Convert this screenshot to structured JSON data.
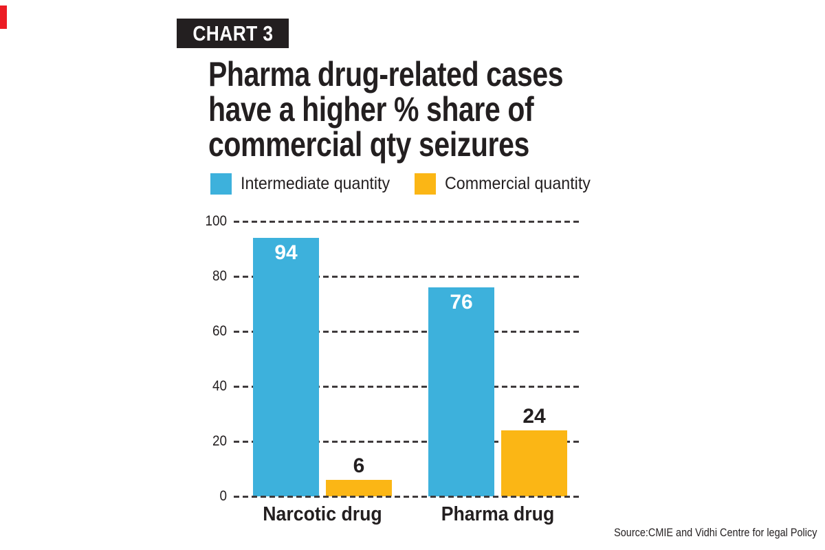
{
  "colors": {
    "ink": "#231F20",
    "accent_red": "#EC1C24",
    "blue": "#3DB1DC",
    "yellow": "#FBB615",
    "gridline": "#3F3B3C",
    "tag_bg": "#231F20",
    "tag_fg": "#FFFFFF"
  },
  "tag": {
    "label": "CHART 3"
  },
  "title": {
    "lines": [
      "Pharma drug-related cases",
      "have a higher % share of",
      "commercial qty seizures"
    ]
  },
  "source": {
    "text": "Source:CMIE and Vidhi Centre for legal Policy"
  },
  "chart_data": {
    "type": "bar",
    "categories": [
      "Narcotic drug",
      "Pharma drug"
    ],
    "series": [
      {
        "name": "Intermediate quantity",
        "color": "#3DB1DC",
        "values": [
          94,
          76
        ],
        "value_label_position": "inside-top",
        "value_label_color": "#FFFFFF"
      },
      {
        "name": "Commercial quantity",
        "color": "#FBB615",
        "values": [
          6,
          24
        ],
        "value_label_position": "above",
        "value_label_color": "#231F20"
      }
    ],
    "ylabel": "",
    "xlabel": "",
    "ylim": [
      0,
      100
    ],
    "yticks": [
      0,
      20,
      40,
      60,
      80,
      100
    ],
    "grid": "horizontal-dashed",
    "legend_position": "top",
    "units": "% share"
  }
}
